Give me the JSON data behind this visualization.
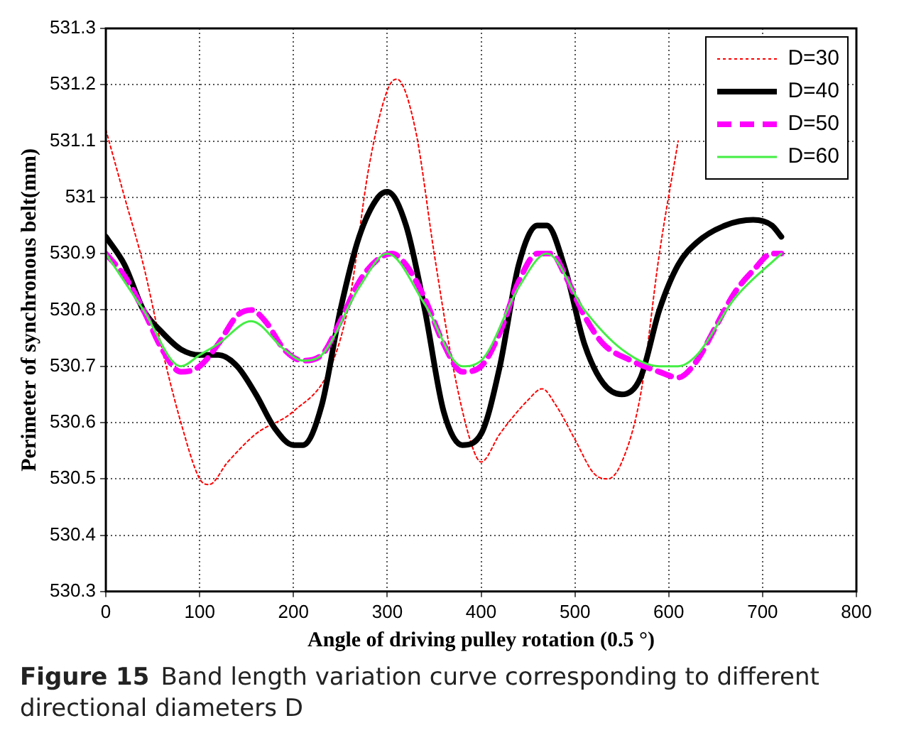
{
  "chart_data": {
    "type": "line",
    "xlabel": "Angle of driving pulley rotation (0.5 °)",
    "ylabel": "Perimeter of synchronous belt(mm)",
    "xlim": [
      0,
      800
    ],
    "xticks": [
      0,
      100,
      200,
      300,
      400,
      500,
      600,
      700,
      800
    ],
    "ylim": [
      530.3,
      531.3
    ],
    "yticks": [
      530.3,
      530.4,
      530.5,
      530.6,
      530.7,
      530.8,
      530.9,
      531,
      531.1,
      531.2,
      531.3
    ],
    "grid": true,
    "legend": "top right",
    "marker": "none",
    "annotations": [
      "Figure 15",
      "Band length variation curve corresponding to different directional diameters D"
    ],
    "series": [
      {
        "name": "D=30",
        "color": "#ff0000",
        "line_style": "dotted",
        "x": [
          0,
          20,
          40,
          60,
          80,
          100,
          110,
          130,
          160,
          200,
          240,
          260,
          280,
          300,
          310,
          330,
          350,
          370,
          390,
          400,
          420,
          450,
          465,
          480,
          500,
          520,
          535,
          550,
          570,
          590,
          610
        ],
        "values": [
          531.12,
          531.0,
          530.88,
          530.73,
          530.6,
          530.5,
          530.49,
          530.53,
          530.58,
          530.62,
          530.7,
          530.82,
          531.05,
          531.19,
          531.21,
          531.12,
          530.9,
          530.7,
          530.56,
          530.53,
          530.58,
          530.64,
          530.66,
          530.63,
          530.57,
          530.51,
          530.5,
          530.53,
          530.65,
          530.9,
          531.1
        ]
      },
      {
        "name": "D=40",
        "color": "#000000",
        "line_style": "solid",
        "x": [
          0,
          20,
          40,
          60,
          80,
          100,
          120,
          140,
          160,
          180,
          200,
          210,
          230,
          250,
          270,
          290,
          300,
          320,
          340,
          360,
          380,
          400,
          420,
          440,
          460,
          470,
          490,
          510,
          530,
          550,
          570,
          590,
          610,
          630,
          660,
          690,
          710,
          720
        ],
        "values": [
          530.93,
          530.88,
          530.8,
          530.76,
          530.73,
          530.72,
          530.72,
          530.7,
          530.65,
          530.59,
          530.56,
          530.56,
          530.63,
          530.8,
          530.93,
          531.0,
          531.01,
          530.95,
          530.8,
          530.62,
          530.56,
          530.58,
          530.7,
          530.88,
          530.95,
          530.95,
          530.87,
          530.74,
          530.67,
          530.65,
          530.68,
          530.8,
          530.88,
          530.92,
          530.95,
          530.96,
          530.95,
          530.93
        ]
      },
      {
        "name": "D=50",
        "color": "#ff00ff",
        "line_style": "dashed",
        "x": [
          0,
          20,
          40,
          60,
          80,
          100,
          120,
          140,
          155,
          170,
          190,
          210,
          230,
          250,
          270,
          290,
          305,
          320,
          340,
          360,
          380,
          400,
          420,
          440,
          460,
          475,
          490,
          510,
          530,
          560,
          590,
          610,
          630,
          650,
          670,
          690,
          710,
          720
        ],
        "values": [
          530.9,
          530.86,
          530.8,
          530.73,
          530.69,
          530.7,
          530.74,
          530.79,
          530.8,
          530.78,
          530.73,
          530.71,
          530.72,
          530.78,
          530.85,
          530.89,
          530.9,
          530.88,
          530.82,
          530.74,
          530.69,
          530.7,
          530.76,
          530.85,
          530.9,
          530.9,
          530.86,
          530.79,
          530.74,
          530.71,
          530.69,
          530.68,
          530.71,
          530.77,
          530.83,
          530.87,
          530.9,
          530.9
        ]
      },
      {
        "name": "D=60",
        "color": "#44ee44",
        "line_style": "solid",
        "x": [
          0,
          40,
          80,
          100,
          120,
          155,
          190,
          210,
          230,
          270,
          300,
          340,
          380,
          400,
          440,
          470,
          510,
          550,
          590,
          610,
          630,
          670,
          720
        ],
        "values": [
          530.9,
          530.8,
          530.7,
          530.72,
          530.74,
          530.78,
          530.73,
          530.71,
          530.72,
          530.84,
          530.9,
          530.81,
          530.7,
          530.71,
          530.84,
          530.9,
          530.8,
          530.73,
          530.7,
          530.7,
          530.72,
          530.82,
          530.9
        ]
      }
    ]
  }
}
